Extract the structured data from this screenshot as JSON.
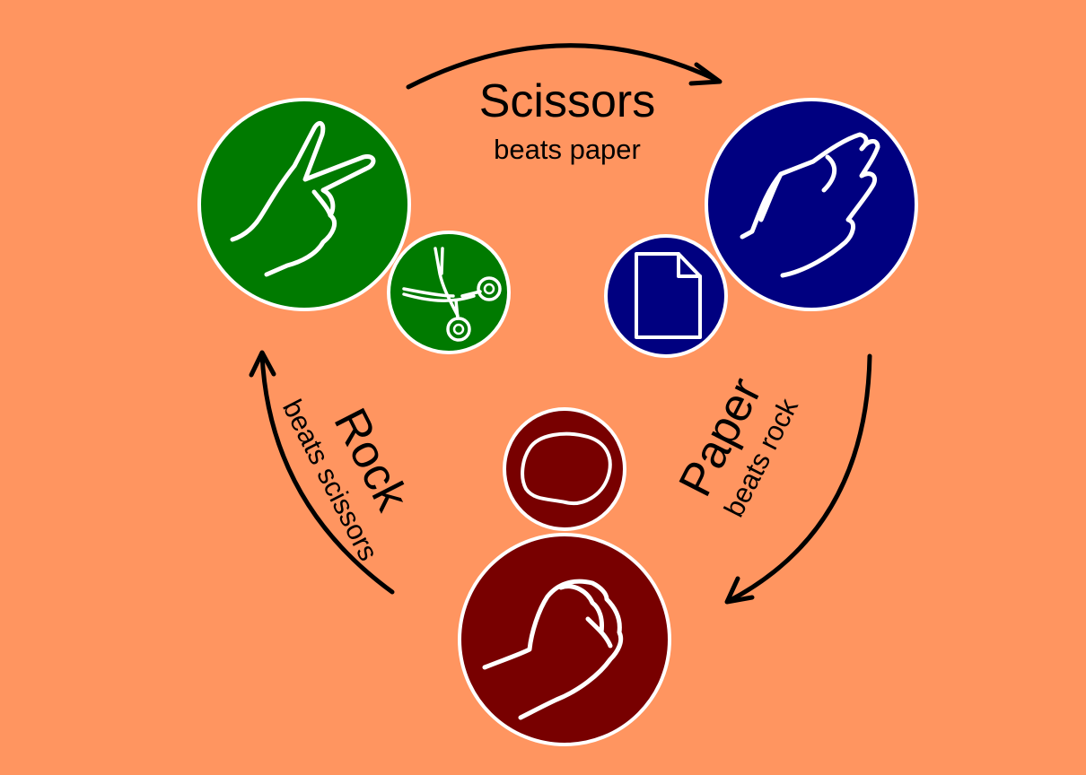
{
  "colors": {
    "background": "#ff9560",
    "scissors": "#007a00",
    "paper": "#000080",
    "rock": "#780000",
    "outline": "#ffffff"
  },
  "scissors": {
    "title": "Scissors",
    "subtitle": "beats paper",
    "icon": "victory-hand-icon",
    "small_icon": "scissors-icon"
  },
  "paper": {
    "title": "Paper",
    "subtitle": "beats rock",
    "icon": "open-hand-icon",
    "small_icon": "document-icon"
  },
  "rock": {
    "title": "Rock",
    "subtitle": "beats scissors",
    "icon": "fist-icon",
    "small_icon": "stone-icon"
  }
}
